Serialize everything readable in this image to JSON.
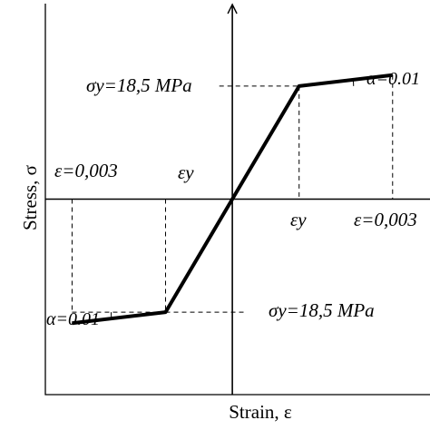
{
  "chart_data": {
    "type": "line",
    "title": "",
    "xlabel": "Strain, ε",
    "ylabel": "Stress, σ",
    "grid": false,
    "legend": "none",
    "curve_color": "#000000",
    "strain_points": [
      -0.003,
      -0.00125,
      0,
      0.00125,
      0.003
    ],
    "stress_points": [
      -20.3,
      -18.5,
      0,
      18.5,
      20.3
    ],
    "xlim": [
      -0.0035,
      0.0037
    ],
    "ylim": [
      -32,
      32
    ],
    "annotations": {
      "sigma_y_top": "σy=18,5 MPa",
      "sigma_y_bottom": "σy=18,5 MPa",
      "eps_left": "ε=0,003",
      "eps_right": "ε=0,003",
      "eps_y_left": "εy",
      "eps_y_right": "εy",
      "alpha_left": "α=0.01",
      "alpha_right": "α=0.01"
    }
  }
}
